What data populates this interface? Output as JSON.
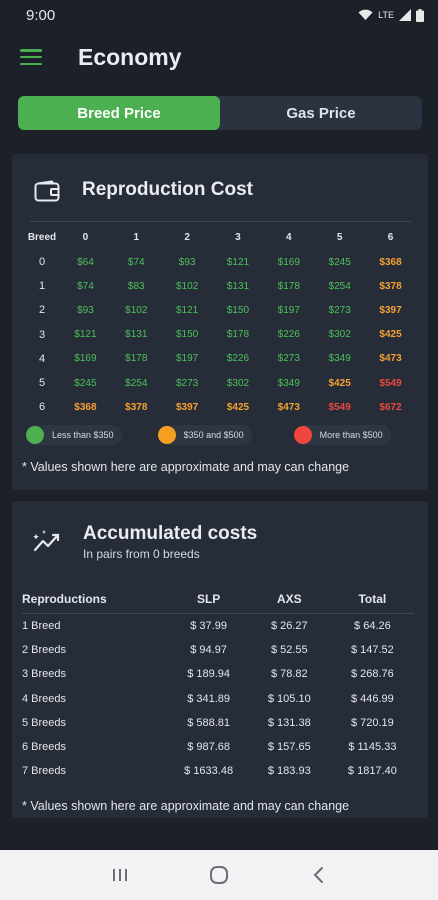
{
  "status_bar": {
    "time": "9:00",
    "network": "LTE",
    "icons": [
      "wifi-icon",
      "signal-icon",
      "battery-icon"
    ]
  },
  "app_bar": {
    "title": "Economy",
    "menu_icon": "hamburger-menu-icon"
  },
  "tabs": [
    {
      "label": "Breed Price",
      "active": true
    },
    {
      "label": "Gas Price",
      "active": false
    }
  ],
  "reproduction": {
    "icon": "wallet-icon",
    "title": "Reproduction Cost",
    "columns": [
      "Breed",
      "0",
      "1",
      "2",
      "3",
      "4",
      "5",
      "6"
    ],
    "rows": [
      {
        "label": "0",
        "cells": [
          {
            "v": "$64",
            "l": "g"
          },
          {
            "v": "$74",
            "l": "g"
          },
          {
            "v": "$93",
            "l": "g"
          },
          {
            "v": "$121",
            "l": "g"
          },
          {
            "v": "$169",
            "l": "g"
          },
          {
            "v": "$245",
            "l": "g"
          },
          {
            "v": "$368",
            "l": "o"
          }
        ]
      },
      {
        "label": "1",
        "cells": [
          {
            "v": "$74",
            "l": "g"
          },
          {
            "v": "$83",
            "l": "g"
          },
          {
            "v": "$102",
            "l": "g"
          },
          {
            "v": "$131",
            "l": "g"
          },
          {
            "v": "$178",
            "l": "g"
          },
          {
            "v": "$254",
            "l": "g"
          },
          {
            "v": "$378",
            "l": "o"
          }
        ]
      },
      {
        "label": "2",
        "cells": [
          {
            "v": "$93",
            "l": "g"
          },
          {
            "v": "$102",
            "l": "g"
          },
          {
            "v": "$121",
            "l": "g"
          },
          {
            "v": "$150",
            "l": "g"
          },
          {
            "v": "$197",
            "l": "g"
          },
          {
            "v": "$273",
            "l": "g"
          },
          {
            "v": "$397",
            "l": "o"
          }
        ]
      },
      {
        "label": "3",
        "cells": [
          {
            "v": "$121",
            "l": "g"
          },
          {
            "v": "$131",
            "l": "g"
          },
          {
            "v": "$150",
            "l": "g"
          },
          {
            "v": "$178",
            "l": "g"
          },
          {
            "v": "$226",
            "l": "g"
          },
          {
            "v": "$302",
            "l": "g"
          },
          {
            "v": "$425",
            "l": "o"
          }
        ]
      },
      {
        "label": "4",
        "cells": [
          {
            "v": "$169",
            "l": "g"
          },
          {
            "v": "$178",
            "l": "g"
          },
          {
            "v": "$197",
            "l": "g"
          },
          {
            "v": "$226",
            "l": "g"
          },
          {
            "v": "$273",
            "l": "g"
          },
          {
            "v": "$349",
            "l": "g"
          },
          {
            "v": "$473",
            "l": "o"
          }
        ]
      },
      {
        "label": "5",
        "cells": [
          {
            "v": "$245",
            "l": "g"
          },
          {
            "v": "$254",
            "l": "g"
          },
          {
            "v": "$273",
            "l": "g"
          },
          {
            "v": "$302",
            "l": "g"
          },
          {
            "v": "$349",
            "l": "g"
          },
          {
            "v": "$425",
            "l": "o"
          },
          {
            "v": "$549",
            "l": "r"
          }
        ]
      },
      {
        "label": "6",
        "cells": [
          {
            "v": "$368",
            "l": "o"
          },
          {
            "v": "$378",
            "l": "o"
          },
          {
            "v": "$397",
            "l": "o"
          },
          {
            "v": "$425",
            "l": "o"
          },
          {
            "v": "$473",
            "l": "o"
          },
          {
            "v": "$549",
            "l": "r"
          },
          {
            "v": "$672",
            "l": "r"
          }
        ]
      }
    ],
    "legend": [
      {
        "label": "Less than $350",
        "color": "#4caf50"
      },
      {
        "label": "$350 and $500",
        "color": "#f59e22"
      },
      {
        "label": "More than $500",
        "color": "#f0463f"
      }
    ],
    "note": "* Values shown here are approximate and may can change"
  },
  "accumulated": {
    "icon": "trending-chart-icon",
    "title": "Accumulated costs",
    "subtitle": "In pairs from 0 breeds",
    "columns": [
      "Reproductions",
      "SLP",
      "AXS",
      "Total"
    ],
    "rows": [
      [
        "1 Breed",
        "$ 37.99",
        "$ 26.27",
        "$ 64.26"
      ],
      [
        "2 Breeds",
        "$ 94.97",
        "$ 52.55",
        "$ 147.52"
      ],
      [
        "3 Breeds",
        "$ 189.94",
        "$ 78.82",
        "$ 268.76"
      ],
      [
        "4 Breeds",
        "$ 341.89",
        "$ 105.10",
        "$ 446.99"
      ],
      [
        "5 Breeds",
        "$ 588.81",
        "$ 131.38",
        "$ 720.19"
      ],
      [
        "6 Breeds",
        "$ 987.68",
        "$ 157.65",
        "$ 1145.33"
      ],
      [
        "7 Breeds",
        "$ 1633.48",
        "$ 183.93",
        "$ 1817.40"
      ]
    ],
    "note": "* Values shown here are approximate and may can change"
  },
  "nav_bar": {
    "buttons": [
      "recents-icon",
      "home-icon",
      "back-icon"
    ]
  }
}
